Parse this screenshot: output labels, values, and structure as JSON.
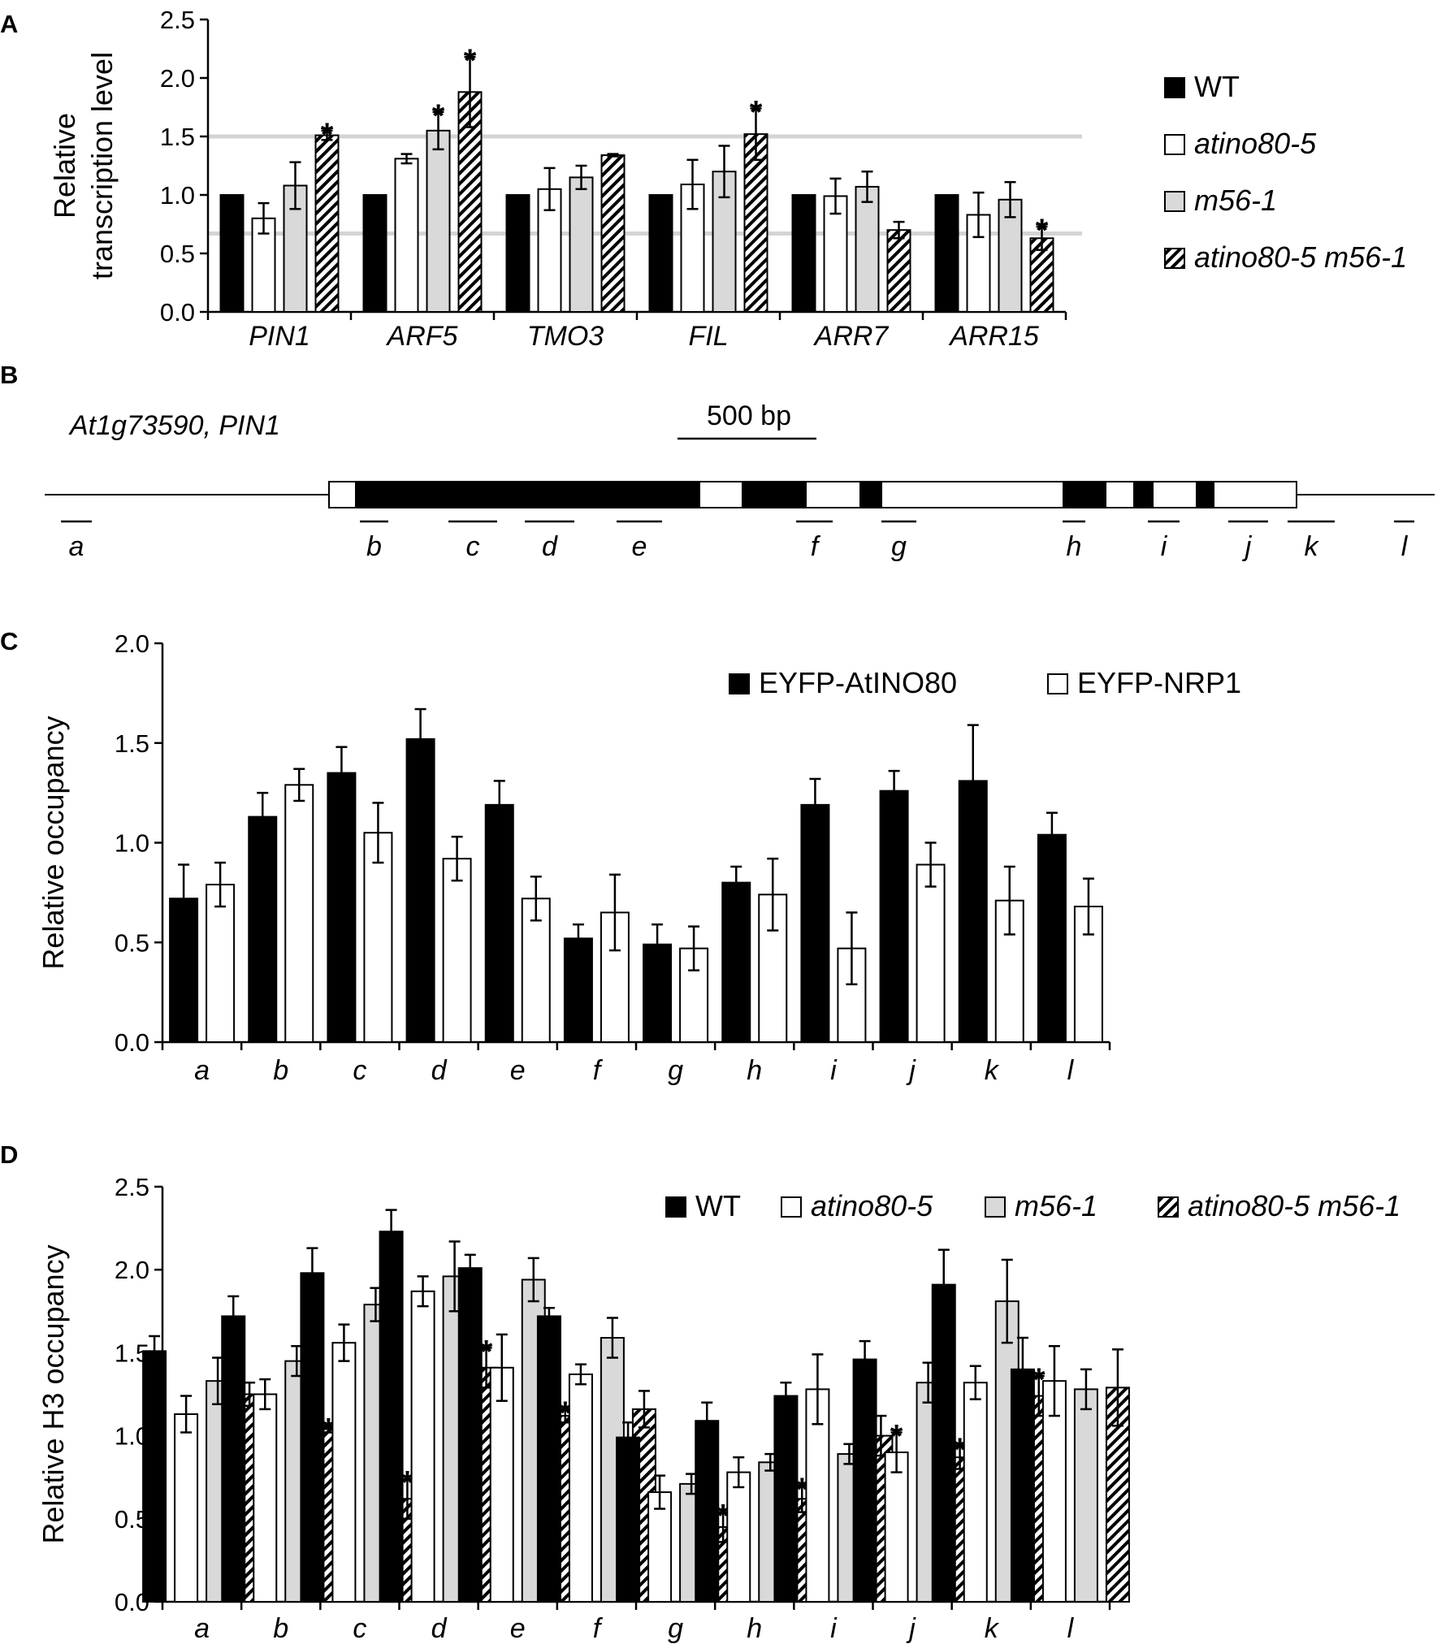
{
  "colors": {
    "black": "#000000",
    "white": "#ffffff",
    "gray": "#d9d9d9",
    "reference_line": "#d4d4d4"
  },
  "chart_data": [
    {
      "panel": "A",
      "type": "bar",
      "ylabel": [
        "Relative",
        "transcription level"
      ],
      "ylim": [
        0,
        2.5
      ],
      "yticks": [
        "0.0",
        "0.5",
        "1.0",
        "1.5",
        "2.0",
        "2.5"
      ],
      "reference_lines": [
        1.5,
        0.67
      ],
      "legend_position": "right",
      "categories": [
        "PIN1",
        "ARF5",
        "TMO3",
        "FIL",
        "ARR7",
        "ARR15"
      ],
      "series": [
        {
          "name": "WT",
          "fill": "black",
          "values": [
            1.0,
            1.0,
            1.0,
            1.0,
            1.0,
            1.0
          ],
          "errors": [
            0,
            0,
            0,
            0,
            0,
            0
          ],
          "sig": [
            false,
            false,
            false,
            false,
            false,
            false
          ]
        },
        {
          "name": "atino80-5",
          "fill": "white",
          "values": [
            0.8,
            1.31,
            1.05,
            1.09,
            0.99,
            0.83
          ],
          "errors": [
            0.13,
            0.04,
            0.18,
            0.21,
            0.15,
            0.19
          ],
          "sig": [
            false,
            false,
            false,
            false,
            false,
            false
          ]
        },
        {
          "name": "m56-1",
          "fill": "gray",
          "values": [
            1.08,
            1.55,
            1.15,
            1.2,
            1.07,
            0.96
          ],
          "errors": [
            0.2,
            0.16,
            0.1,
            0.22,
            0.13,
            0.15
          ],
          "sig": [
            false,
            true,
            false,
            false,
            false,
            false
          ]
        },
        {
          "name": "atino80-5 m56-1",
          "fill": "hatch",
          "values": [
            1.51,
            1.88,
            1.34,
            1.52,
            0.7,
            0.63
          ],
          "errors": [
            0.04,
            0.3,
            0.01,
            0.22,
            0.07,
            0.1
          ],
          "sig": [
            true,
            true,
            false,
            true,
            false,
            true
          ]
        }
      ]
    },
    {
      "panel": "C",
      "type": "bar",
      "ylabel": [
        "Relative occupancy"
      ],
      "ylim": [
        0,
        2.0
      ],
      "yticks": [
        "0.0",
        "0.5",
        "1.0",
        "1.5",
        "2.0"
      ],
      "legend_position": "top-right",
      "categories": [
        "a",
        "b",
        "c",
        "d",
        "e",
        "f",
        "g",
        "h",
        "i",
        "j",
        "k",
        "l"
      ],
      "series": [
        {
          "name": "EYFP-AtINO80",
          "fill": "black",
          "values": [
            0.72,
            1.13,
            1.35,
            1.52,
            1.19,
            0.52,
            0.49,
            0.8,
            1.19,
            1.26,
            1.31,
            1.04
          ],
          "errors": [
            0.17,
            0.12,
            0.13,
            0.15,
            0.12,
            0.07,
            0.1,
            0.08,
            0.13,
            0.1,
            0.28,
            0.11
          ],
          "sig": [
            false,
            false,
            false,
            false,
            false,
            false,
            false,
            false,
            false,
            false,
            false,
            false
          ]
        },
        {
          "name": "EYFP-NRP1",
          "fill": "white",
          "values": [
            0.79,
            1.29,
            1.05,
            0.92,
            0.72,
            0.65,
            0.47,
            0.74,
            0.47,
            0.89,
            0.71,
            0.68
          ],
          "errors": [
            0.11,
            0.08,
            0.15,
            0.11,
            0.11,
            0.19,
            0.11,
            0.18,
            0.18,
            0.11,
            0.17,
            0.14
          ],
          "sig": [
            false,
            false,
            false,
            false,
            false,
            false,
            false,
            false,
            false,
            false,
            false,
            false
          ]
        }
      ]
    },
    {
      "panel": "D",
      "type": "bar",
      "ylabel": [
        "Relative H3 occupancy"
      ],
      "ylim": [
        0,
        2.5
      ],
      "yticks": [
        "0.0",
        "0.5",
        "1.0",
        "1.5",
        "2.0",
        "2.5"
      ],
      "legend_position": "top-right",
      "categories": [
        "a",
        "b",
        "c",
        "d",
        "e",
        "f",
        "g",
        "h",
        "i",
        "j",
        "k",
        "l"
      ],
      "series": [
        {
          "name": "WT",
          "fill": "black",
          "values": [
            1.51,
            1.72,
            1.98,
            2.23,
            2.01,
            1.72,
            0.99,
            1.09,
            1.24,
            1.46,
            1.91,
            1.4
          ],
          "errors": [
            0.09,
            0.12,
            0.15,
            0.13,
            0.08,
            0.05,
            0.09,
            0.11,
            0.08,
            0.11,
            0.21,
            0.19
          ],
          "sig": [
            false,
            false,
            false,
            false,
            false,
            false,
            false,
            false,
            false,
            false,
            false,
            false
          ]
        },
        {
          "name": "atino80-5",
          "fill": "white",
          "values": [
            1.13,
            1.25,
            1.56,
            1.87,
            1.41,
            1.37,
            0.66,
            0.78,
            1.28,
            0.9,
            1.32,
            1.33
          ],
          "errors": [
            0.11,
            0.09,
            0.11,
            0.09,
            0.2,
            0.06,
            0.1,
            0.09,
            0.21,
            0.12,
            0.1,
            0.21
          ],
          "sig": [
            false,
            false,
            false,
            false,
            false,
            false,
            false,
            false,
            false,
            true,
            false,
            false
          ]
        },
        {
          "name": "m56-1",
          "fill": "gray",
          "values": [
            1.33,
            1.45,
            1.79,
            1.96,
            1.94,
            1.59,
            0.71,
            0.84,
            0.89,
            1.32,
            1.81,
            1.28
          ],
          "errors": [
            0.14,
            0.09,
            0.1,
            0.21,
            0.13,
            0.12,
            0.06,
            0.05,
            0.06,
            0.12,
            0.25,
            0.12
          ],
          "sig": [
            false,
            false,
            false,
            false,
            false,
            false,
            false,
            false,
            false,
            false,
            false,
            false
          ]
        },
        {
          "name": "atino80-5 m56-1",
          "fill": "hatch",
          "values": [
            1.25,
            1.04,
            0.62,
            1.41,
            1.12,
            1.16,
            0.45,
            0.62,
            1.0,
            0.87,
            1.24,
            1.29
          ],
          "errors": [
            0.07,
            0.02,
            0.12,
            0.12,
            0.04,
            0.11,
            0.09,
            0.08,
            0.12,
            0.07,
            0.12,
            0.23
          ],
          "sig": [
            false,
            true,
            true,
            true,
            true,
            false,
            true,
            true,
            false,
            true,
            true,
            false
          ]
        }
      ]
    }
  ],
  "panel_B": {
    "letter": "B",
    "gene_title": "At1g73590, PIN1",
    "scale_label": "500 bp",
    "fragments": [
      "a",
      "b",
      "c",
      "d",
      "e",
      "f",
      "g",
      "h",
      "i",
      "j",
      "k",
      "l"
    ]
  },
  "panel_letters": [
    "A",
    "C",
    "D"
  ],
  "significance_mark": "*"
}
